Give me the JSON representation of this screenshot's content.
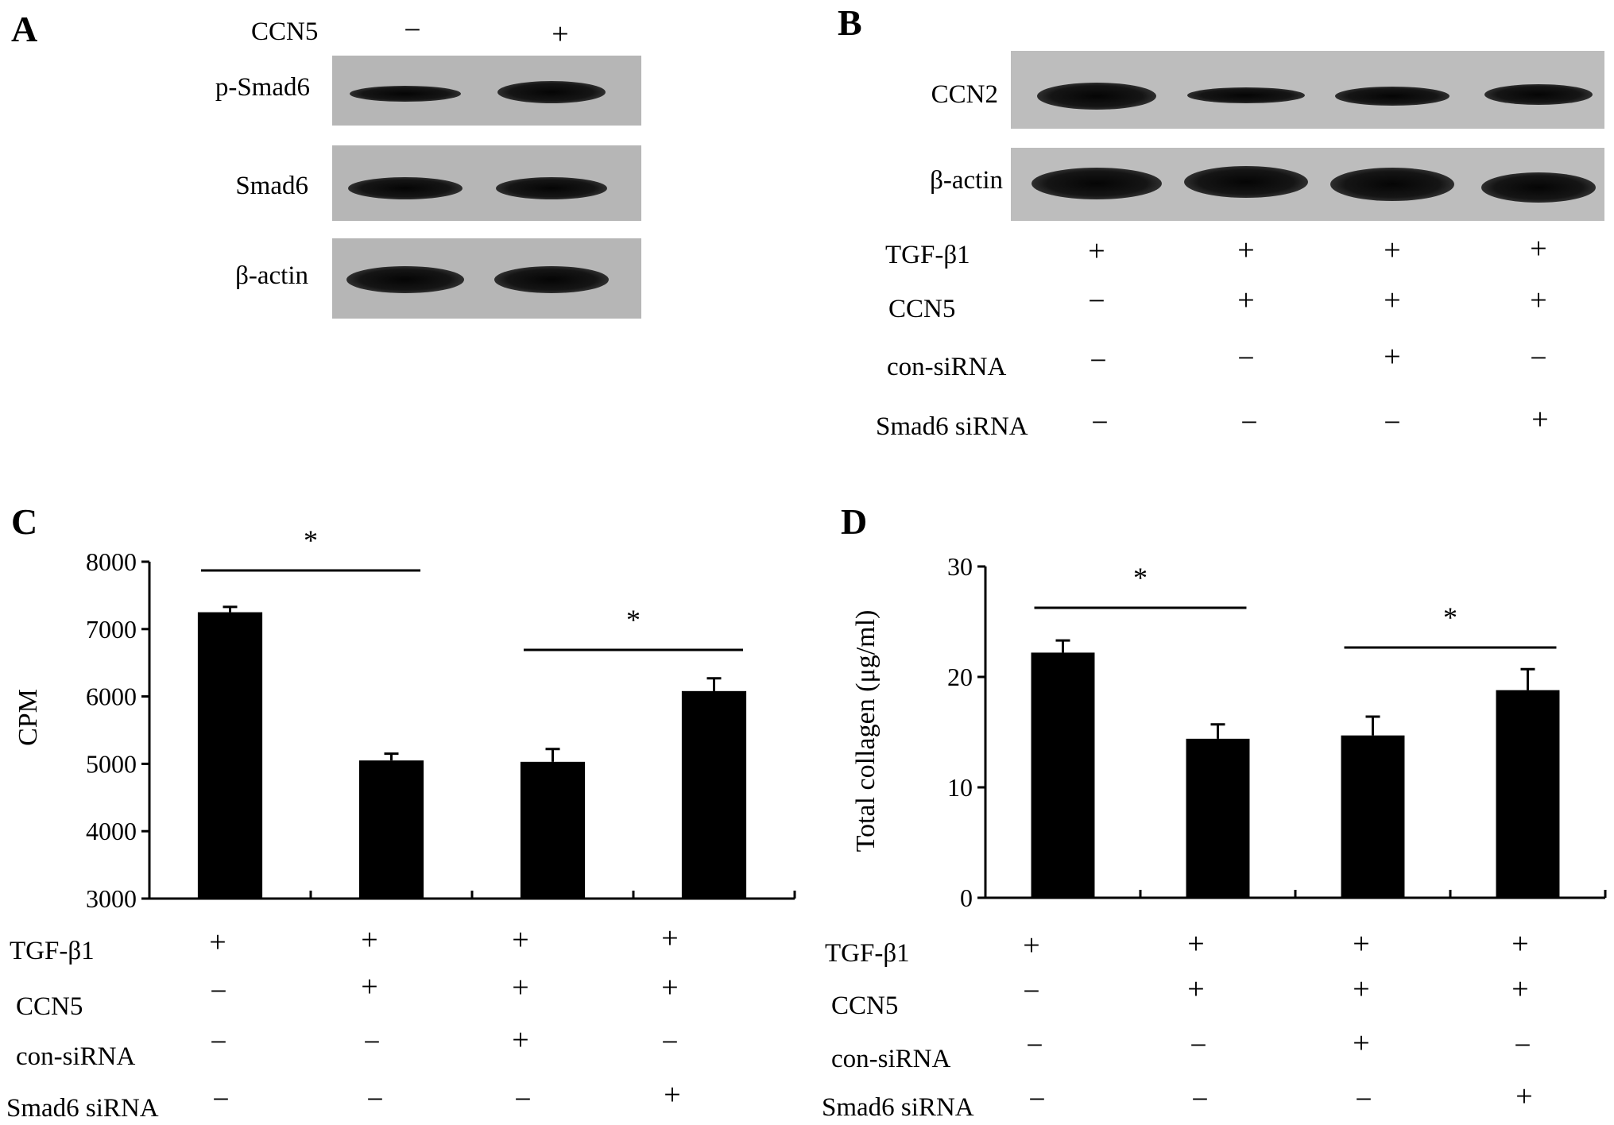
{
  "panels": {
    "a": {
      "letter": "A",
      "header_label": "CCN5",
      "header_symbols": [
        "−",
        "+"
      ],
      "blot_labels": [
        "p-Smad6",
        "Smad6",
        "β-actin"
      ]
    },
    "b": {
      "letter": "B",
      "blot_labels": [
        "CCN2",
        "β-actin"
      ],
      "treatments": [
        {
          "label": "TGF-β1",
          "symbols": [
            "+",
            "+",
            "+",
            "+"
          ]
        },
        {
          "label": "CCN5",
          "symbols": [
            "−",
            "+",
            "+",
            "+"
          ]
        },
        {
          "label": "con-siRNA",
          "symbols": [
            "−",
            "−",
            "+",
            "−"
          ]
        },
        {
          "label": "Smad6 siRNA",
          "symbols": [
            "−",
            "−",
            "−",
            "+"
          ]
        }
      ]
    },
    "c": {
      "letter": "C",
      "treatments": [
        {
          "label": "TGF-β1",
          "symbols": [
            "+",
            "+",
            "+",
            "+"
          ]
        },
        {
          "label": "CCN5",
          "symbols": [
            "−",
            "+",
            "+",
            "+"
          ]
        },
        {
          "label": "con-siRNA",
          "symbols": [
            "−",
            "−",
            "+",
            "−"
          ]
        },
        {
          "label": "Smad6 siRNA",
          "symbols": [
            "−",
            "−",
            "−",
            "+"
          ]
        }
      ]
    },
    "d": {
      "letter": "D",
      "treatments": [
        {
          "label": "TGF-β1",
          "symbols": [
            "+",
            "+",
            "+",
            "+"
          ]
        },
        {
          "label": "CCN5",
          "symbols": [
            "−",
            "+",
            "+",
            "+"
          ]
        },
        {
          "label": "con-siRNA",
          "symbols": [
            "−",
            "−",
            "+",
            "−"
          ]
        },
        {
          "label": "Smad6 siRNA",
          "symbols": [
            "−",
            "−",
            "−",
            "+"
          ]
        }
      ]
    }
  },
  "chart_data": [
    {
      "type": "bar",
      "panel": "C",
      "title": "",
      "xlabel": "",
      "ylabel": "CPM",
      "ylim": [
        3000,
        8000
      ],
      "yticks": [
        "3000",
        "4000",
        "5000",
        "6000",
        "7000",
        "8000"
      ],
      "values": [
        7250,
        5050,
        5030,
        6080
      ],
      "errors": [
        80,
        100,
        190,
        190
      ],
      "significance": [
        {
          "groups": [
            1,
            2
          ],
          "label": "*"
        },
        {
          "groups": [
            3,
            4
          ],
          "label": "*"
        }
      ],
      "bar_color": "#000000"
    },
    {
      "type": "bar",
      "panel": "D",
      "title": "",
      "xlabel": "",
      "ylabel": "Total collagen (μg/ml)",
      "ylim": [
        0,
        30
      ],
      "yticks": [
        "0",
        "10",
        "20",
        "30"
      ],
      "values": [
        22.2,
        14.4,
        14.7,
        18.8
      ],
      "errors": [
        1.1,
        1.3,
        1.7,
        1.9
      ],
      "significance": [
        {
          "groups": [
            1,
            2
          ],
          "label": "*"
        },
        {
          "groups": [
            3,
            4
          ],
          "label": "*"
        }
      ],
      "bar_color": "#000000"
    }
  ]
}
